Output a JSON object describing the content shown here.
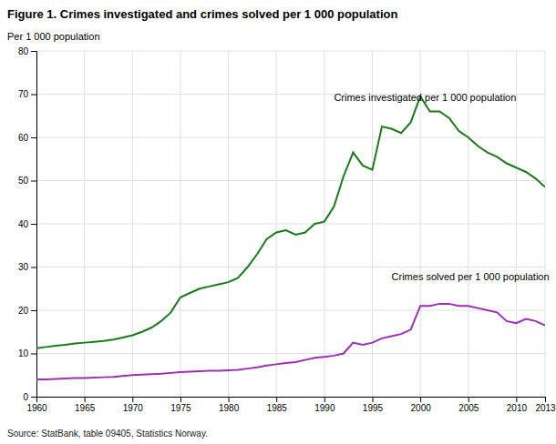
{
  "chart_data": {
    "type": "line",
    "title": "Figure 1. Crimes investigated and crimes solved per 1 000 population",
    "ylabel": "Per 1 000 population",
    "source": "Source: StatBank, table 09405, Statistics Norway.",
    "x": [
      1960,
      1961,
      1962,
      1963,
      1964,
      1965,
      1966,
      1967,
      1968,
      1969,
      1970,
      1971,
      1972,
      1973,
      1974,
      1975,
      1976,
      1977,
      1978,
      1979,
      1980,
      1981,
      1982,
      1983,
      1984,
      1985,
      1986,
      1987,
      1988,
      1989,
      1990,
      1991,
      1992,
      1993,
      1994,
      1995,
      1996,
      1997,
      1998,
      1999,
      2000,
      2001,
      2002,
      2003,
      2004,
      2005,
      2006,
      2007,
      2008,
      2009,
      2010,
      2011,
      2012,
      2013
    ],
    "series": [
      {
        "color": "#1a7a1a",
        "values": [
          11.2,
          11.5,
          11.8,
          12.0,
          12.3,
          12.5,
          12.7,
          12.9,
          13.2,
          13.7,
          14.2,
          15.0,
          16.0,
          17.5,
          19.5,
          23.0,
          24.0,
          25.0,
          25.5,
          26.0,
          26.5,
          27.5,
          30.0,
          33.0,
          36.5,
          38.0,
          38.5,
          37.5,
          38.0,
          40.0,
          40.5,
          44.0,
          51.0,
          56.5,
          53.5,
          52.5,
          62.5,
          62.0,
          61.0,
          63.5,
          69.5,
          66.0,
          66.0,
          64.5,
          61.5,
          60.0,
          58.0,
          56.5,
          55.5,
          54.0,
          53.0,
          52.0,
          50.5,
          48.5
        ]
      },
      {
        "color": "#9b2fb5",
        "values": [
          4.0,
          4.0,
          4.1,
          4.2,
          4.3,
          4.3,
          4.4,
          4.5,
          4.6,
          4.8,
          5.0,
          5.1,
          5.2,
          5.3,
          5.5,
          5.7,
          5.8,
          5.9,
          6.0,
          6.0,
          6.1,
          6.2,
          6.5,
          6.8,
          7.2,
          7.5,
          7.8,
          8.0,
          8.5,
          9.0,
          9.2,
          9.5,
          10.0,
          12.5,
          12.0,
          12.5,
          13.5,
          14.0,
          14.5,
          15.5,
          21.0,
          21.0,
          21.5,
          21.5,
          21.0,
          21.0,
          20.5,
          20.0,
          19.5,
          17.5,
          17.0,
          18.0,
          17.5,
          16.5
        ]
      }
    ],
    "annotations": [
      {
        "text": "Crimes investigated per 1 000 population",
        "x": 1991,
        "y": 68.5
      },
      {
        "text": "Crimes solved per 1 000 population",
        "x": 1997,
        "y": 27.0
      }
    ],
    "xlim": [
      1960,
      2013
    ],
    "ylim": [
      0,
      80
    ],
    "xticks": [
      1960,
      1965,
      1970,
      1975,
      1980,
      1985,
      1990,
      1995,
      2000,
      2005,
      2010,
      2013
    ],
    "yticks": [
      0,
      10,
      20,
      30,
      40,
      50,
      60,
      70,
      80
    ],
    "grid": true
  }
}
